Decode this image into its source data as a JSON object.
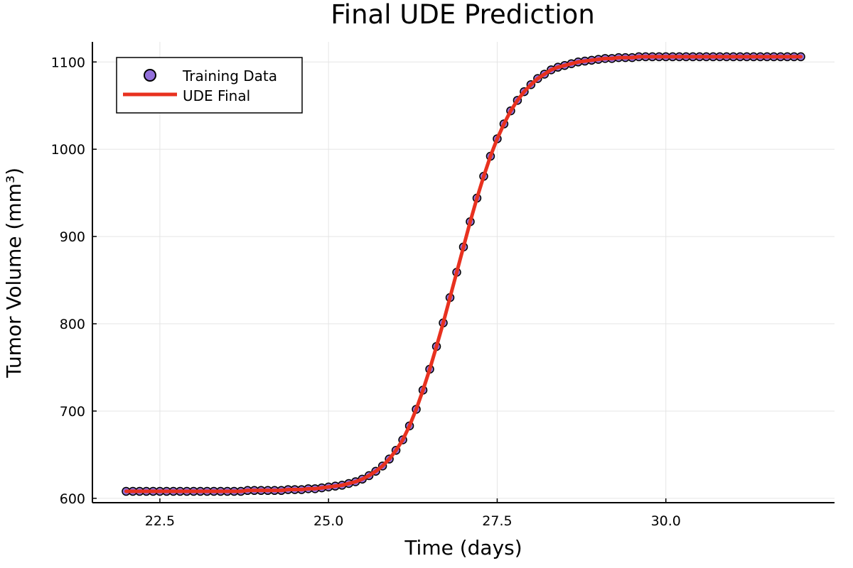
{
  "chart_data": {
    "type": "line",
    "title": "Final UDE Prediction",
    "xlabel": "Time (days)",
    "ylabel": "Tumor Volume (mm³)",
    "xlim": [
      21.5,
      32.5
    ],
    "ylim": [
      595,
      1123
    ],
    "xticks": [
      22.5,
      25.0,
      27.5,
      30.0
    ],
    "xtick_labels": [
      "22.5",
      "25.0",
      "27.5",
      "30.0"
    ],
    "yticks": [
      600,
      700,
      800,
      900,
      1000,
      1100
    ],
    "ytick_labels": [
      "600",
      "700",
      "800",
      "900",
      "1000",
      "1100"
    ],
    "grid": true,
    "legend_position": "top-left",
    "colors": {
      "scatter_fill": "#9370DB",
      "scatter_stroke": "#000000",
      "line": "#E8311F"
    },
    "series": [
      {
        "name": "Training Data",
        "kind": "scatter",
        "x": [
          22.0,
          22.1,
          22.2,
          22.3,
          22.4,
          22.5,
          22.6,
          22.7,
          22.8,
          22.9,
          23.0,
          23.1,
          23.2,
          23.3,
          23.4,
          23.5,
          23.6,
          23.7,
          23.8,
          23.9,
          24.0,
          24.1,
          24.2,
          24.3,
          24.4,
          24.5,
          24.6,
          24.7,
          24.8,
          24.9,
          25.0,
          25.1,
          25.2,
          25.3,
          25.4,
          25.5,
          25.6,
          25.7,
          25.8,
          25.9,
          26.0,
          26.1,
          26.2,
          26.3,
          26.4,
          26.5,
          26.6,
          26.7,
          26.8,
          26.9,
          27.0,
          27.1,
          27.2,
          27.3,
          27.4,
          27.5,
          27.6,
          27.7,
          27.8,
          27.9,
          28.0,
          28.1,
          28.2,
          28.3,
          28.4,
          28.5,
          28.6,
          28.7,
          28.8,
          28.9,
          29.0,
          29.1,
          29.2,
          29.3,
          29.4,
          29.5,
          29.6,
          29.7,
          29.8,
          29.9,
          30.0,
          30.1,
          30.2,
          30.3,
          30.4,
          30.5,
          30.6,
          30.7,
          30.8,
          30.9,
          31.0,
          31.1,
          31.2,
          31.3,
          31.4,
          31.5,
          31.6,
          31.7,
          31.8,
          31.9,
          32.0
        ],
        "y": [
          608,
          608,
          608,
          608,
          608,
          608,
          608,
          608,
          608,
          608,
          608,
          608,
          608,
          608,
          608,
          608,
          608,
          608,
          609,
          609,
          609,
          609,
          609,
          609,
          610,
          610,
          610,
          611,
          611,
          612,
          613,
          614,
          615,
          617,
          619,
          622,
          626,
          631,
          637,
          645,
          655,
          667,
          683,
          702,
          724,
          748,
          774,
          801,
          830,
          859,
          888,
          917,
          944,
          969,
          992,
          1012,
          1029,
          1044,
          1056,
          1066,
          1074,
          1081,
          1086,
          1091,
          1094,
          1096,
          1098,
          1100,
          1101,
          1102,
          1103,
          1104,
          1104,
          1105,
          1105,
          1105,
          1106,
          1106,
          1106,
          1106,
          1106,
          1106,
          1106,
          1106,
          1106,
          1106,
          1106,
          1106,
          1106,
          1106,
          1106,
          1106,
          1106,
          1106,
          1106,
          1106,
          1106,
          1106,
          1106,
          1106,
          1106
        ]
      },
      {
        "name": "UDE Final",
        "kind": "line",
        "x": [
          22.0,
          22.1,
          22.2,
          22.3,
          22.4,
          22.5,
          22.6,
          22.7,
          22.8,
          22.9,
          23.0,
          23.1,
          23.2,
          23.3,
          23.4,
          23.5,
          23.6,
          23.7,
          23.8,
          23.9,
          24.0,
          24.1,
          24.2,
          24.3,
          24.4,
          24.5,
          24.6,
          24.7,
          24.8,
          24.9,
          25.0,
          25.1,
          25.2,
          25.3,
          25.4,
          25.5,
          25.6,
          25.7,
          25.8,
          25.9,
          26.0,
          26.1,
          26.2,
          26.3,
          26.4,
          26.5,
          26.6,
          26.7,
          26.8,
          26.9,
          27.0,
          27.1,
          27.2,
          27.3,
          27.4,
          27.5,
          27.6,
          27.7,
          27.8,
          27.9,
          28.0,
          28.1,
          28.2,
          28.3,
          28.4,
          28.5,
          28.6,
          28.7,
          28.8,
          28.9,
          29.0,
          29.1,
          29.2,
          29.3,
          29.4,
          29.5,
          29.6,
          29.7,
          29.8,
          29.9,
          30.0,
          30.1,
          30.2,
          30.3,
          30.4,
          30.5,
          30.6,
          30.7,
          30.8,
          30.9,
          31.0,
          31.1,
          31.2,
          31.3,
          31.4,
          31.5,
          31.6,
          31.7,
          31.8,
          31.9,
          32.0
        ],
        "y": [
          608,
          608,
          608,
          608,
          608,
          608,
          608,
          608,
          608,
          608,
          608,
          608,
          608,
          608,
          608,
          608,
          608,
          608,
          609,
          609,
          609,
          609,
          609,
          609,
          610,
          610,
          610,
          611,
          611,
          612,
          613,
          614,
          615,
          617,
          619,
          622,
          626,
          631,
          637,
          645,
          655,
          667,
          683,
          702,
          724,
          748,
          774,
          801,
          830,
          859,
          888,
          917,
          944,
          969,
          992,
          1012,
          1029,
          1044,
          1056,
          1066,
          1074,
          1081,
          1086,
          1091,
          1094,
          1096,
          1098,
          1100,
          1101,
          1102,
          1103,
          1104,
          1104,
          1105,
          1105,
          1105,
          1106,
          1106,
          1106,
          1106,
          1106,
          1106,
          1106,
          1106,
          1106,
          1106,
          1106,
          1106,
          1106,
          1106,
          1106,
          1106,
          1106,
          1106,
          1106,
          1106,
          1106,
          1106,
          1106,
          1106,
          1106
        ]
      }
    ]
  }
}
